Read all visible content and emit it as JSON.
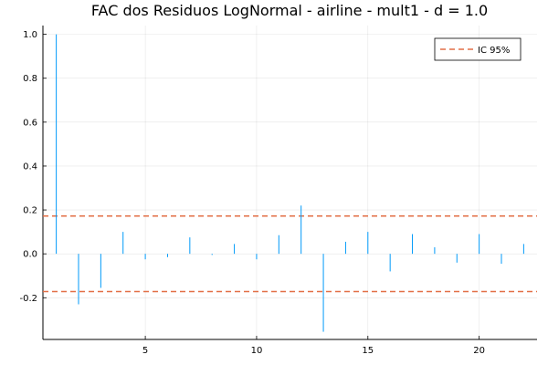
{
  "chart_data": {
    "type": "bar",
    "title": "FAC dos Residuos  LogNormal - airline - mult1 - d = 1.0",
    "xlabel": "",
    "ylabel": "",
    "xlim": [
      0.4,
      22.6
    ],
    "ylim": [
      -0.39,
      1.04
    ],
    "grid": true,
    "legend_position": "top-right",
    "x_ticks": [
      5,
      10,
      15,
      20
    ],
    "y_ticks": [
      -0.2,
      0.0,
      0.2,
      0.4,
      0.6,
      0.8,
      1.0
    ],
    "y_tick_labels": [
      "-0.2",
      "0.0",
      "0.2",
      "0.4",
      "0.6",
      "0.8",
      "1.0"
    ],
    "series": [
      {
        "kind": "stem",
        "color": "#009AF9",
        "x": [
          1,
          2,
          3,
          4,
          5,
          6,
          7,
          8,
          9,
          10,
          11,
          12,
          13,
          14,
          15,
          16,
          17,
          18,
          19,
          20,
          21,
          22
        ],
        "values": [
          1.0,
          -0.23,
          -0.155,
          0.1,
          -0.025,
          -0.015,
          0.075,
          -0.005,
          0.045,
          -0.025,
          0.085,
          0.22,
          -0.355,
          0.055,
          0.1,
          -0.08,
          0.09,
          0.03,
          -0.04,
          0.09,
          -0.045,
          0.045
        ]
      },
      {
        "kind": "hline",
        "name": "IC 95%",
        "color": "#E26F46",
        "dash": "dashed",
        "values": [
          0.172,
          -0.172
        ]
      }
    ]
  }
}
